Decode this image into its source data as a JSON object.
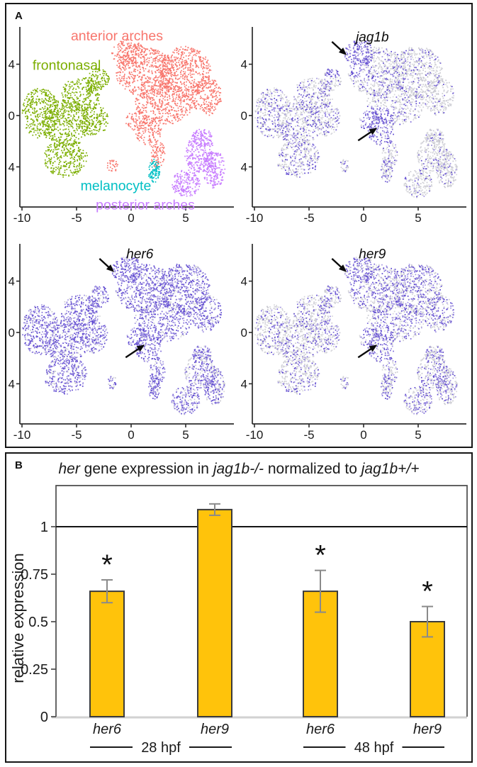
{
  "figure": {
    "panel_a_label": "A",
    "panel_b_label": "B"
  },
  "chart_data": [
    {
      "type": "scatter",
      "panel": "A",
      "description": "UMAP plots of cranial neural crest cells: cluster overview plus jag1b, her6, her9 expression",
      "xticks": [
        -10,
        -5,
        0,
        5
      ],
      "yticks": [
        4,
        0,
        -4
      ],
      "xlim": [
        -10.2,
        9.4
      ],
      "ylim": [
        -7.1,
        7.0
      ],
      "axis_color": "#2b2b2b",
      "tick_label_color": "#1a1a1a",
      "background_dot_colors": [
        "#d6d6db",
        "#c9c9d1"
      ],
      "expression_dot_colors": [
        "#7b68d8",
        "#5b45cf",
        "#a294e2"
      ],
      "clusters": [
        {
          "id": "anterior",
          "label": "anterior arches",
          "color": "#F8766D",
          "label_x": -1.3,
          "label_y": 6.2
        },
        {
          "id": "frontonasal",
          "label": "frontonasal",
          "color": "#7CAE00",
          "label_x": -5.9,
          "label_y": 3.9
        },
        {
          "id": "melanocyte",
          "label": "melanocyte",
          "color": "#00BFC4",
          "label_x": -1.4,
          "label_y": -5.5
        },
        {
          "id": "posterior",
          "label": "posterior arches",
          "color": "#C77CFF",
          "label_x": 1.3,
          "label_y": -7.0
        }
      ],
      "blobs": [
        [
          "frontonasal",
          -8.3,
          0.2,
          1.7,
          2.0,
          340
        ],
        [
          "frontonasal",
          -6.0,
          -0.6,
          2.2,
          1.9,
          390
        ],
        [
          "frontonasal",
          -4.6,
          1.6,
          1.8,
          1.4,
          250
        ],
        [
          "frontonasal",
          -6.0,
          -3.3,
          2.0,
          1.5,
          300
        ],
        [
          "frontonasal",
          -3.4,
          -0.3,
          1.3,
          1.3,
          170
        ],
        [
          "frontonasal",
          -3.0,
          2.8,
          1.0,
          0.9,
          100
        ],
        [
          "anterior",
          1.3,
          3.4,
          2.7,
          1.9,
          500
        ],
        [
          "anterior",
          4.9,
          3.4,
          2.4,
          2.0,
          500
        ],
        [
          "anterior",
          3.0,
          0.9,
          2.7,
          1.6,
          420
        ],
        [
          "anterior",
          -0.3,
          4.9,
          1.5,
          1.0,
          170
        ],
        [
          "anterior",
          6.9,
          1.5,
          1.4,
          1.5,
          210
        ],
        [
          "anterior",
          1.6,
          -1.2,
          1.2,
          1.1,
          120
        ],
        [
          "anterior",
          2.4,
          -3.0,
          0.7,
          1.1,
          80
        ],
        [
          "anterior",
          -1.7,
          -3.9,
          0.5,
          0.5,
          30
        ],
        [
          "anterior",
          0.5,
          -0.4,
          1.0,
          0.8,
          80
        ],
        [
          "melanocyte",
          2.1,
          -4.3,
          0.55,
          0.9,
          90
        ],
        [
          "posterior",
          6.3,
          -3.0,
          1.4,
          1.5,
          220
        ],
        [
          "posterior",
          7.6,
          -4.2,
          1.0,
          1.5,
          195
        ],
        [
          "posterior",
          5.0,
          -5.3,
          1.3,
          1.1,
          180
        ],
        [
          "posterior",
          6.5,
          -1.7,
          0.9,
          0.7,
          90
        ]
      ],
      "gene_plots": [
        {
          "gene": "jag1b",
          "label_x": 0.8,
          "label_y": 6.1,
          "base": 0.3,
          "zones": [
            {
              "x": [
                4,
                9.4
              ],
              "y": [
                -7.5,
                7
              ],
              "p": 0.16
            },
            {
              "x": [
                -10.5,
                -4
              ],
              "y": [
                -7.5,
                7
              ],
              "p": 0.33
            },
            {
              "x": [
                -3.5,
                0.5
              ],
              "y": [
                3,
                5.8
              ],
              "p": 0.8
            },
            {
              "x": [
                -0.2,
                2.6
              ],
              "y": [
                -2.2,
                0.6
              ],
              "p": 0.85
            }
          ],
          "arrows": [
            {
              "x1": -2.9,
              "y1": 5.75,
              "x2": -1.55,
              "y2": 4.7
            },
            {
              "x1": -0.5,
              "y1": -1.95,
              "x2": 1.25,
              "y2": -0.95
            }
          ]
        },
        {
          "gene": "her6",
          "label_x": 0.8,
          "label_y": 6.1,
          "base": 0.82,
          "zones": [
            {
              "x": [
                -3.5,
                0.5
              ],
              "y": [
                3,
                5.8
              ],
              "p": 0.97
            },
            {
              "x": [
                -0.2,
                2.6
              ],
              "y": [
                -2.2,
                0.6
              ],
              "p": 0.97
            },
            {
              "x": [
                4,
                9.4
              ],
              "y": [
                -7.5,
                0
              ],
              "p": 0.65
            }
          ],
          "arrows": [
            {
              "x1": -2.9,
              "y1": 5.75,
              "x2": -1.55,
              "y2": 4.7
            },
            {
              "x1": -0.5,
              "y1": -1.95,
              "x2": 1.25,
              "y2": -0.95
            }
          ]
        },
        {
          "gene": "her9",
          "label_x": 0.8,
          "label_y": 6.1,
          "base": 0.42,
          "zones": [
            {
              "x": [
                -10.5,
                -4
              ],
              "y": [
                -7.5,
                7
              ],
              "p": 0.26
            },
            {
              "x": [
                1,
                9.4
              ],
              "y": [
                0.5,
                7
              ],
              "p": 0.55
            },
            {
              "x": [
                -3.5,
                0.5
              ],
              "y": [
                3,
                5.8
              ],
              "p": 0.62
            },
            {
              "x": [
                -0.2,
                2.6
              ],
              "y": [
                -2.2,
                0.6
              ],
              "p": 0.72
            }
          ],
          "arrows": [
            {
              "x1": -2.9,
              "y1": 5.75,
              "x2": -1.55,
              "y2": 4.7
            },
            {
              "x1": -0.5,
              "y1": -1.95,
              "x2": 1.25,
              "y2": -0.95
            }
          ]
        }
      ]
    },
    {
      "type": "bar",
      "panel": "B",
      "title_segments": [
        {
          "t": "her",
          "i": true
        },
        {
          "t": " gene expression in ",
          "i": false
        },
        {
          "t": "jag1b-/-",
          "i": true
        },
        {
          "t": " normalized to ",
          "i": false
        },
        {
          "t": "jag1b+/+",
          "i": true
        }
      ],
      "ylabel": "relative expression",
      "yticks": [
        {
          "v": 0,
          "label": "0"
        },
        {
          "v": 0.25,
          "label": "0.25"
        },
        {
          "v": 0.5,
          "label": "0.5"
        },
        {
          "v": 0.75,
          "label": "0.75"
        },
        {
          "v": 1,
          "label": "1"
        }
      ],
      "ylim": [
        0,
        1.21
      ],
      "reference_line": 1,
      "bar_color": "#FFC30B",
      "bar_border": "#3b3b3b",
      "error_color": "#8a8a8a",
      "significance_marker": "*",
      "groups": [
        {
          "label": "28 hpf",
          "bars": [
            {
              "gene": "her6",
              "value": 0.66,
              "error": 0.06,
              "significant": true
            },
            {
              "gene": "her9",
              "value": 1.09,
              "error": 0.03,
              "significant": false
            }
          ]
        },
        {
          "label": "48 hpf",
          "bars": [
            {
              "gene": "her6",
              "value": 0.66,
              "error": 0.11,
              "significant": true
            },
            {
              "gene": "her9",
              "value": 0.5,
              "error": 0.08,
              "significant": true
            }
          ]
        }
      ]
    }
  ]
}
